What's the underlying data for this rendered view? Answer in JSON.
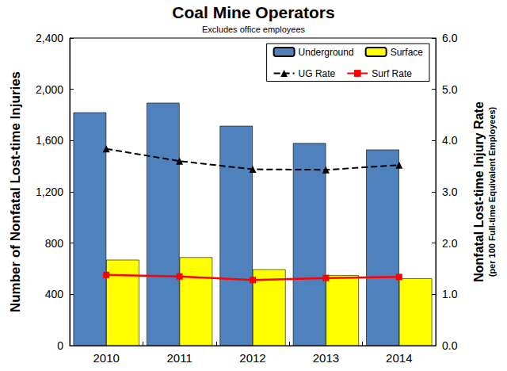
{
  "chart_data": {
    "type": "bar",
    "title": "Coal Mine Operators",
    "subtitle": "Excludes office employees",
    "ylabel": "Number of Nonfatal Lost-time Injuries",
    "y2label": "Nonfatal Lost-time Injury Rate",
    "y2label_note": "(per 100 Full-time Equivalent Employees)",
    "categories": [
      "2010",
      "2011",
      "2012",
      "2013",
      "2014"
    ],
    "series": [
      {
        "name": "Underground",
        "type": "bar",
        "color": "#4f81bd",
        "values": [
          1820,
          1895,
          1715,
          1580,
          1530
        ]
      },
      {
        "name": "Surface",
        "type": "bar",
        "color": "#ffff00",
        "values": [
          670,
          690,
          595,
          550,
          525
        ]
      },
      {
        "name": "UG Rate",
        "type": "line",
        "axis": "y2",
        "color": "#000000",
        "marker": "triangle",
        "line_style": "dashed",
        "values": [
          3.84,
          3.6,
          3.44,
          3.43,
          3.52
        ]
      },
      {
        "name": "Surf Rate",
        "type": "line",
        "axis": "y2",
        "color": "#ff0000",
        "marker": "square",
        "line_style": "solid",
        "values": [
          1.38,
          1.35,
          1.28,
          1.32,
          1.34
        ]
      }
    ],
    "ylim": [
      0,
      2400
    ],
    "yticks": [
      0,
      400,
      800,
      {
        "value": 1200,
        "label": "1,200"
      },
      {
        "value": 1600,
        "label": "1,600"
      },
      {
        "value": 2000,
        "label": "2,000"
      },
      {
        "value": 2400,
        "label": "2,400"
      }
    ],
    "y2lim": [
      0,
      6
    ],
    "y2ticks": [
      {
        "value": 0,
        "label": "0.0"
      },
      {
        "value": 1,
        "label": "1.0"
      },
      {
        "value": 2,
        "label": "2.0"
      },
      {
        "value": 3,
        "label": "3.0"
      },
      {
        "value": 4,
        "label": "4.0"
      },
      {
        "value": 5,
        "label": "5.0"
      },
      {
        "value": 6,
        "label": "6.0"
      }
    ],
    "grid": false,
    "legend": "upper right"
  }
}
